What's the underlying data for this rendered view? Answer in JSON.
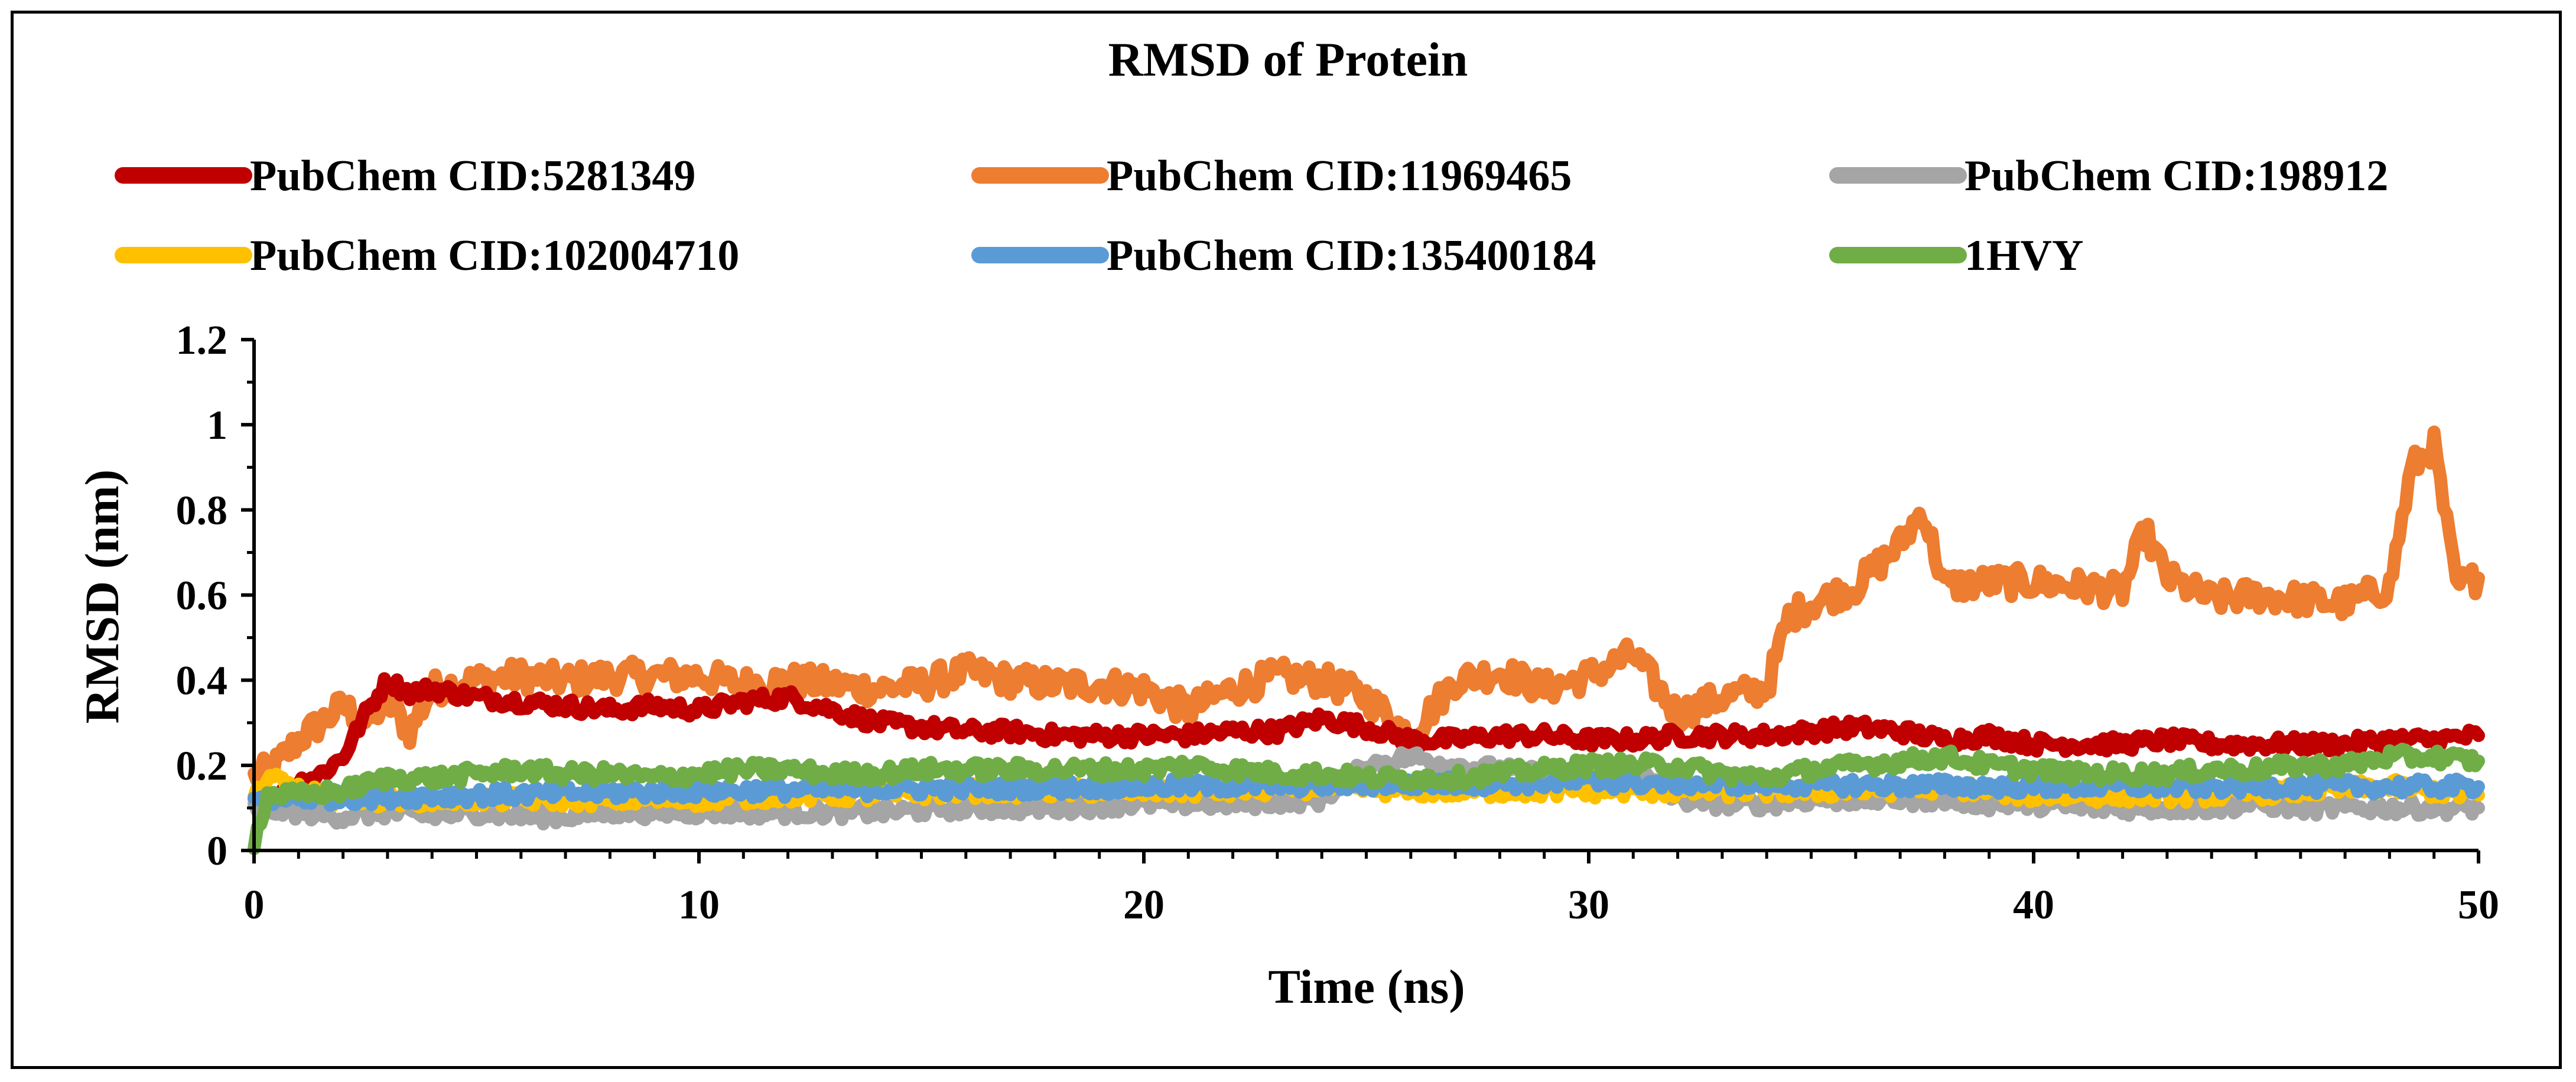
{
  "chart_data": {
    "type": "line",
    "title": "RMSD of Protein",
    "xlabel": "Time (ns)",
    "ylabel": "RMSD (nm)",
    "xlim": [
      0,
      50
    ],
    "ylim": [
      0,
      1.2
    ],
    "xticks": [
      0,
      10,
      20,
      30,
      40,
      50
    ],
    "yticks": [
      0,
      0.2,
      0.4,
      0.6,
      0.8,
      1,
      1.2
    ],
    "ytick_labels": [
      "0",
      "0.2",
      "0.4",
      "0.6",
      "0.8",
      "1",
      "1.2"
    ],
    "legend_position": "top",
    "grid": false,
    "series": [
      {
        "name": "PubChem CID:5281349",
        "color": "#C00000",
        "x": [
          0,
          0.5,
          1,
          1.5,
          2,
          2.5,
          3,
          3.5,
          4,
          5,
          6,
          7,
          8,
          9,
          10,
          11,
          12,
          13,
          14,
          15,
          16,
          17,
          18,
          19,
          20,
          21,
          22,
          23,
          24,
          25,
          26,
          27,
          28,
          29,
          30,
          31,
          32,
          33,
          34,
          35,
          36,
          37,
          38,
          39,
          40,
          41,
          42,
          43,
          44,
          45,
          46,
          47,
          48,
          49,
          50
        ],
        "values": [
          0.14,
          0.12,
          0.16,
          0.18,
          0.22,
          0.32,
          0.4,
          0.37,
          0.38,
          0.36,
          0.35,
          0.34,
          0.33,
          0.34,
          0.33,
          0.35,
          0.36,
          0.33,
          0.3,
          0.29,
          0.28,
          0.28,
          0.27,
          0.27,
          0.27,
          0.27,
          0.28,
          0.28,
          0.31,
          0.29,
          0.26,
          0.26,
          0.27,
          0.27,
          0.26,
          0.26,
          0.27,
          0.27,
          0.27,
          0.28,
          0.29,
          0.28,
          0.26,
          0.27,
          0.25,
          0.25,
          0.25,
          0.26,
          0.25,
          0.25,
          0.25,
          0.25,
          0.26,
          0.26,
          0.27
        ]
      },
      {
        "name": "PubChem CID:11969465",
        "color": "#ED7D31",
        "x": [
          0,
          0.5,
          1,
          1.5,
          2,
          2.5,
          3,
          3.5,
          4,
          5,
          6,
          7,
          8,
          9,
          10,
          11,
          12,
          13,
          14,
          15,
          16,
          17,
          18,
          19,
          20,
          21,
          22,
          23,
          24,
          25,
          26,
          27,
          28,
          29,
          30,
          31,
          32,
          33,
          34,
          34.5,
          35,
          36,
          37,
          37.5,
          38,
          39,
          40,
          41,
          42,
          42.5,
          43,
          44,
          45,
          46,
          47,
          48,
          48.5,
          49,
          49.5,
          50
        ],
        "values": [
          0.17,
          0.2,
          0.26,
          0.3,
          0.34,
          0.3,
          0.35,
          0.28,
          0.38,
          0.4,
          0.41,
          0.4,
          0.41,
          0.41,
          0.41,
          0.39,
          0.4,
          0.39,
          0.38,
          0.39,
          0.42,
          0.4,
          0.39,
          0.39,
          0.38,
          0.33,
          0.38,
          0.41,
          0.4,
          0.36,
          0.27,
          0.4,
          0.42,
          0.38,
          0.41,
          0.46,
          0.32,
          0.36,
          0.38,
          0.55,
          0.58,
          0.62,
          0.72,
          0.8,
          0.62,
          0.63,
          0.63,
          0.62,
          0.61,
          0.75,
          0.64,
          0.59,
          0.6,
          0.59,
          0.58,
          0.62,
          0.9,
          0.95,
          0.62,
          0.64
        ]
      },
      {
        "name": "PubChem CID:198912",
        "color": "#A5A5A5",
        "x": [
          0,
          1,
          2,
          3,
          4,
          5,
          6,
          7,
          8,
          9,
          10,
          12,
          14,
          16,
          18,
          20,
          22,
          24,
          25,
          26,
          27,
          28,
          29,
          30,
          31,
          32,
          33,
          34,
          35,
          36,
          37,
          38,
          39,
          40,
          41,
          42,
          43,
          44,
          45,
          46,
          47,
          48,
          49,
          50
        ],
        "values": [
          0.1,
          0.09,
          0.08,
          0.09,
          0.08,
          0.09,
          0.08,
          0.08,
          0.09,
          0.09,
          0.09,
          0.09,
          0.09,
          0.1,
          0.1,
          0.11,
          0.11,
          0.12,
          0.2,
          0.22,
          0.2,
          0.19,
          0.18,
          0.17,
          0.19,
          0.12,
          0.11,
          0.11,
          0.12,
          0.12,
          0.12,
          0.12,
          0.11,
          0.11,
          0.1,
          0.1,
          0.1,
          0.1,
          0.11,
          0.1,
          0.1,
          0.1,
          0.1,
          0.1
        ]
      },
      {
        "name": "PubChem CID:102004710",
        "color": "#FFC000",
        "x": [
          0,
          0.5,
          1,
          2,
          3,
          4,
          5,
          6,
          8,
          10,
          12,
          14,
          16,
          18,
          20,
          22,
          24,
          26,
          28,
          30,
          32,
          34,
          36,
          38,
          40,
          42,
          44,
          46,
          48,
          50
        ],
        "values": [
          0.13,
          0.17,
          0.14,
          0.12,
          0.12,
          0.12,
          0.12,
          0.12,
          0.12,
          0.12,
          0.13,
          0.13,
          0.14,
          0.14,
          0.14,
          0.14,
          0.15,
          0.14,
          0.14,
          0.14,
          0.14,
          0.14,
          0.14,
          0.15,
          0.13,
          0.13,
          0.13,
          0.14,
          0.15,
          0.13
        ]
      },
      {
        "name": "PubChem CID:135400184",
        "color": "#5B9BD5",
        "x": [
          0,
          10,
          20,
          30,
          40,
          50
        ],
        "values": [
          0.12,
          0.14,
          0.15,
          0.16,
          0.15,
          0.15
        ]
      },
      {
        "name": "1HVY",
        "color": "#70AD47",
        "x": [
          0,
          0.3,
          1,
          2,
          3,
          4,
          5,
          6,
          7,
          8,
          9,
          10,
          11,
          12,
          13,
          14,
          15,
          16,
          17,
          18,
          19,
          20,
          21,
          22,
          23,
          24,
          25,
          26,
          27,
          28,
          29,
          30,
          31,
          32,
          33,
          34,
          35,
          36,
          37,
          38,
          39,
          40,
          41,
          42,
          43,
          44,
          45,
          46,
          47,
          48,
          49,
          50
        ],
        "values": [
          0.02,
          0.13,
          0.13,
          0.14,
          0.17,
          0.17,
          0.18,
          0.19,
          0.18,
          0.18,
          0.17,
          0.18,
          0.19,
          0.19,
          0.18,
          0.18,
          0.19,
          0.19,
          0.19,
          0.19,
          0.19,
          0.19,
          0.2,
          0.19,
          0.18,
          0.18,
          0.17,
          0.17,
          0.17,
          0.18,
          0.19,
          0.2,
          0.2,
          0.2,
          0.18,
          0.17,
          0.19,
          0.2,
          0.21,
          0.22,
          0.2,
          0.19,
          0.18,
          0.18,
          0.18,
          0.19,
          0.19,
          0.2,
          0.2,
          0.22,
          0.22,
          0.21
        ]
      }
    ]
  }
}
